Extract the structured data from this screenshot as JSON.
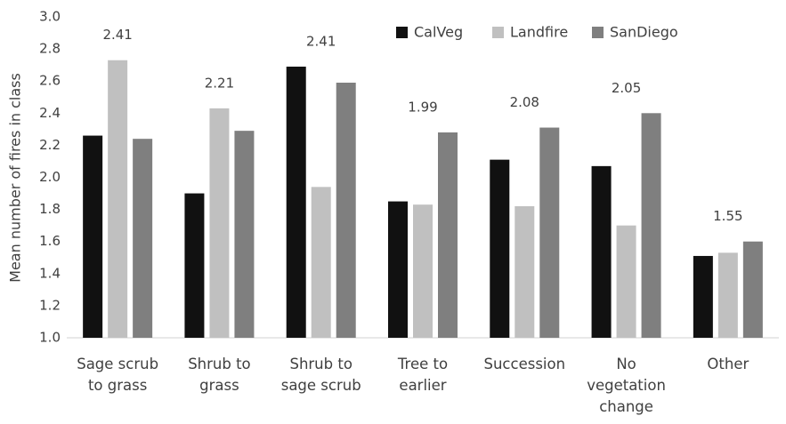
{
  "chart_data": {
    "type": "bar",
    "y_label": "Mean number of fires in class",
    "categories": [
      "Sage scrub to grass",
      "Shrub to grass",
      "Shrub to sage scrub",
      "Tree to earlier",
      "Succession",
      "No vegetation change",
      "Other"
    ],
    "series": [
      {
        "name": "CalVeg",
        "color": "#111111",
        "values": [
          2.26,
          1.9,
          2.69,
          1.85,
          2.11,
          2.07,
          1.51
        ]
      },
      {
        "name": "Landfire",
        "color": "#c0c0c0",
        "values": [
          2.73,
          2.43,
          1.94,
          1.83,
          1.82,
          1.7,
          1.53
        ]
      },
      {
        "name": "SanDiego",
        "color": "#7f7f7f",
        "values": [
          2.24,
          2.29,
          2.59,
          2.28,
          2.31,
          2.4,
          1.6
        ]
      }
    ],
    "group_labels": [
      2.41,
      2.21,
      2.41,
      1.99,
      2.08,
      2.05,
      1.55
    ],
    "ylim": [
      1.0,
      3.0
    ],
    "yticks": [
      {
        "value": 1,
        "label": "1.0"
      },
      {
        "value": 1.2,
        "label": "1.2"
      },
      {
        "value": 1.4,
        "label": "1.4"
      },
      {
        "value": 1.6,
        "label": "1.6"
      },
      {
        "value": 1.8,
        "label": "1.8"
      },
      {
        "value": 2,
        "label": "2.0"
      },
      {
        "value": 2.2,
        "label": "2.2"
      },
      {
        "value": 2.4,
        "label": "2.4"
      },
      {
        "value": 2.6,
        "label": "2.6"
      },
      {
        "value": 2.8,
        "label": "2.8"
      },
      {
        "value": 3,
        "label": "3.0"
      }
    ],
    "legend_position": "top-right"
  }
}
